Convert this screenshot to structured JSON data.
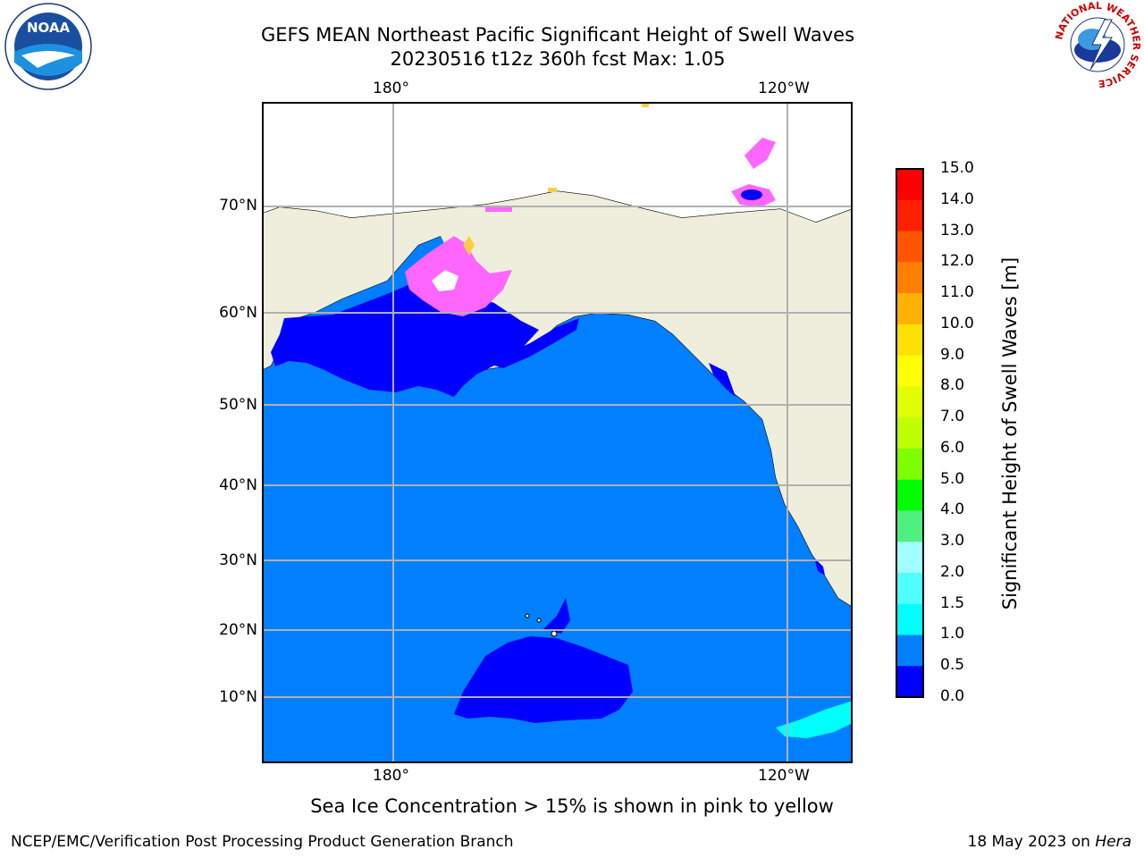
{
  "title": {
    "line1": "GEFS MEAN Northeast Pacific Significant Height of Swell Waves",
    "line2": "20230516 t12z 360h fcst   Max: 1.05"
  },
  "axes": {
    "lon_top": [
      "180°",
      "120°W"
    ],
    "lon_bottom": [
      "180°",
      "120°W"
    ],
    "lat": [
      "70°N",
      "60°N",
      "50°N",
      "40°N",
      "30°N",
      "20°N",
      "10°N"
    ]
  },
  "colorbar": {
    "label": "Significant Height of Swell Waves [m]",
    "ticks": [
      "15.0",
      "14.0",
      "13.0",
      "12.0",
      "11.0",
      "10.0",
      "9.0",
      "8.0",
      "7.0",
      "6.0",
      "5.0",
      "4.0",
      "3.0",
      "2.0",
      "1.5",
      "1.0",
      "0.5",
      "0.0"
    ],
    "colors": [
      "#ff0000",
      "#ff2000",
      "#ff5500",
      "#ff8000",
      "#ffb000",
      "#ffe000",
      "#ffff00",
      "#e0ff00",
      "#c0ff00",
      "#80ff00",
      "#00ff00",
      "#50f080",
      "#a0ffff",
      "#50ffff",
      "#00ffff",
      "#0080ff",
      "#0000ff"
    ]
  },
  "note": "Sea Ice Concentration > 15% is shown in pink to yellow",
  "footer": {
    "left": "NCEP/EMC/Verification Post Processing Product Generation Branch",
    "right_date": "18 May 2023 on ",
    "right_host": "Hera"
  },
  "logos": {
    "noaa_text": "NOAA",
    "nws_text": "NATIONAL WEATHER SERVICE"
  },
  "colors": {
    "ocean": "#0080ff",
    "low_swell": "#0000ff",
    "land": "#efeedc",
    "ice_pink": "#ff66ff",
    "ice_yellow": "#ffcc44",
    "cyan": "#00ffff"
  }
}
